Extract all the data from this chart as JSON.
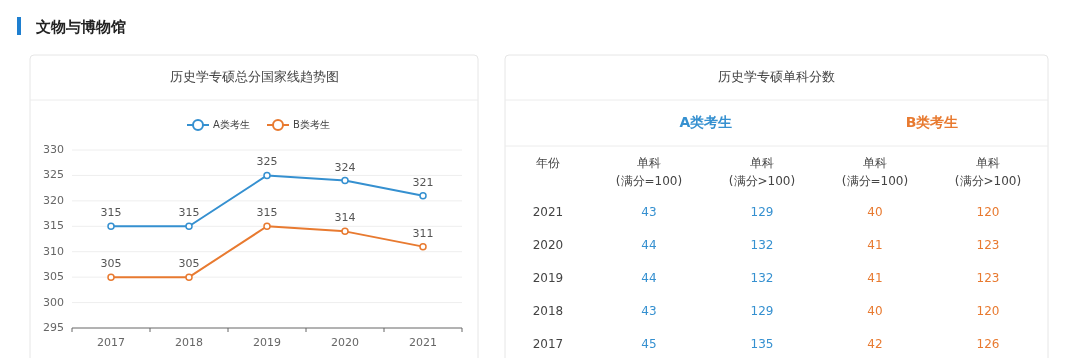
{
  "chart_data": [
    {
      "type": "line",
      "title": "历史学专硕总分国家线趋势图",
      "annotations": [
        "文物与博物馆"
      ],
      "categories": [
        "2017",
        "2018",
        "2019",
        "2020",
        "2021"
      ],
      "ylim": [
        295,
        330
      ],
      "yticks": [
        295,
        300,
        305,
        310,
        315,
        320,
        325,
        330
      ],
      "grid": "y",
      "legend": "top",
      "marker": "circle",
      "data_labels": true,
      "series": [
        {
          "name": "A类考生",
          "color": "#3590d0",
          "values": [
            315,
            315,
            325,
            324,
            321
          ]
        },
        {
          "name": "B类考生",
          "color": "#e87a30",
          "values": [
            305,
            305,
            315,
            314,
            311
          ]
        }
      ]
    },
    {
      "type": "heatmap",
      "title": "历史学专硕单科分数",
      "annotations": [
        "A类考生",
        "B类考生"
      ],
      "ylabel": "年份",
      "categories": [
        "单科 (满分=100)",
        "单科 (满分>100)",
        "单科 (满分=100)",
        "单科 (满分>100)"
      ],
      "y_categories": [
        "2021",
        "2020",
        "2019",
        "2018",
        "2017"
      ],
      "data_labels": true,
      "cells": [
        [
          43,
          129,
          40,
          120
        ],
        [
          44,
          132,
          41,
          123
        ],
        [
          44,
          132,
          41,
          123
        ],
        [
          43,
          129,
          40,
          120
        ],
        [
          45,
          135,
          42,
          126
        ]
      ]
    }
  ]
}
